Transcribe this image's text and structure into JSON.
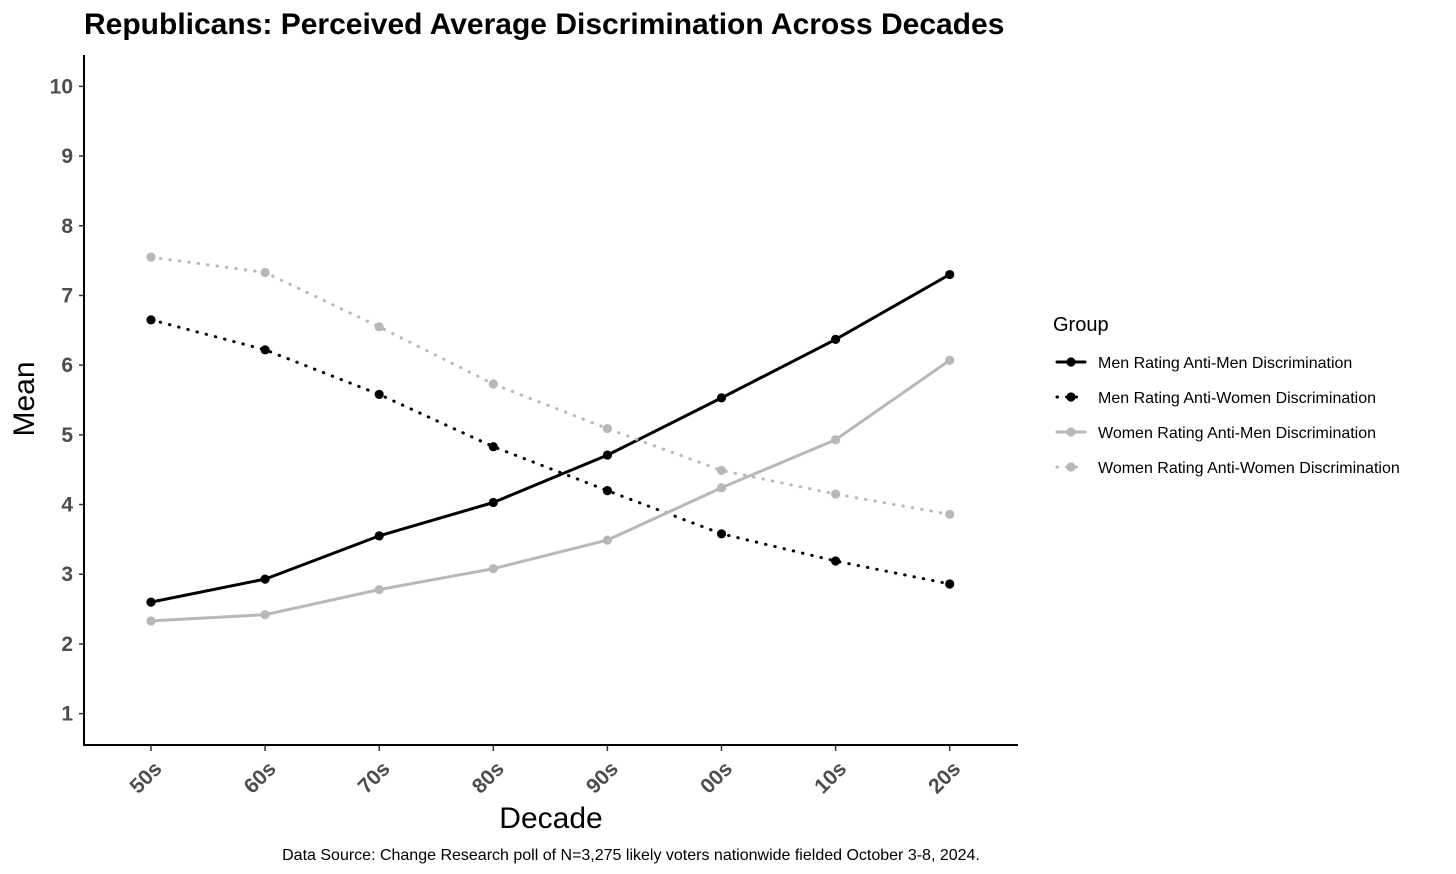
{
  "chart_data": {
    "type": "line",
    "title": "Republicans: Perceived Average Discrimination Across Decades",
    "xlabel": "Decade",
    "ylabel": "Mean",
    "categories": [
      "50s",
      "60s",
      "70s",
      "80s",
      "90s",
      "00s",
      "10s",
      "20s"
    ],
    "y_ticks": [
      "1",
      "2",
      "3",
      "4",
      "5",
      "6",
      "7",
      "8",
      "9",
      "10"
    ],
    "ylim": [
      0.55,
      10.45
    ],
    "grid": false,
    "legend": {
      "title": "Group",
      "placement": "right"
    },
    "series": [
      {
        "name": "Men Rating Anti-Men Discrimination",
        "values": [
          2.6,
          2.93,
          3.55,
          4.03,
          4.71,
          5.53,
          6.37,
          7.3
        ],
        "color": "#000000",
        "line_style": "solid"
      },
      {
        "name": "Men Rating Anti-Women Discrimination",
        "values": [
          6.65,
          6.22,
          5.58,
          4.83,
          4.2,
          3.58,
          3.19,
          2.86
        ],
        "color": "#000000",
        "line_style": "dotted"
      },
      {
        "name": "Women Rating Anti-Men Discrimination",
        "values": [
          2.33,
          2.42,
          2.78,
          3.08,
          3.49,
          4.24,
          4.93,
          6.07
        ],
        "color": "#b8b8b8",
        "line_style": "solid"
      },
      {
        "name": "Women Rating Anti-Women Discrimination",
        "values": [
          7.55,
          7.33,
          6.55,
          5.73,
          5.09,
          4.49,
          4.15,
          3.86
        ],
        "color": "#b8b8b8",
        "line_style": "dotted"
      }
    ],
    "source_note": "Data Source: Change Research poll of N=3,275 likely voters nationwide fielded October 3-8, 2024."
  }
}
